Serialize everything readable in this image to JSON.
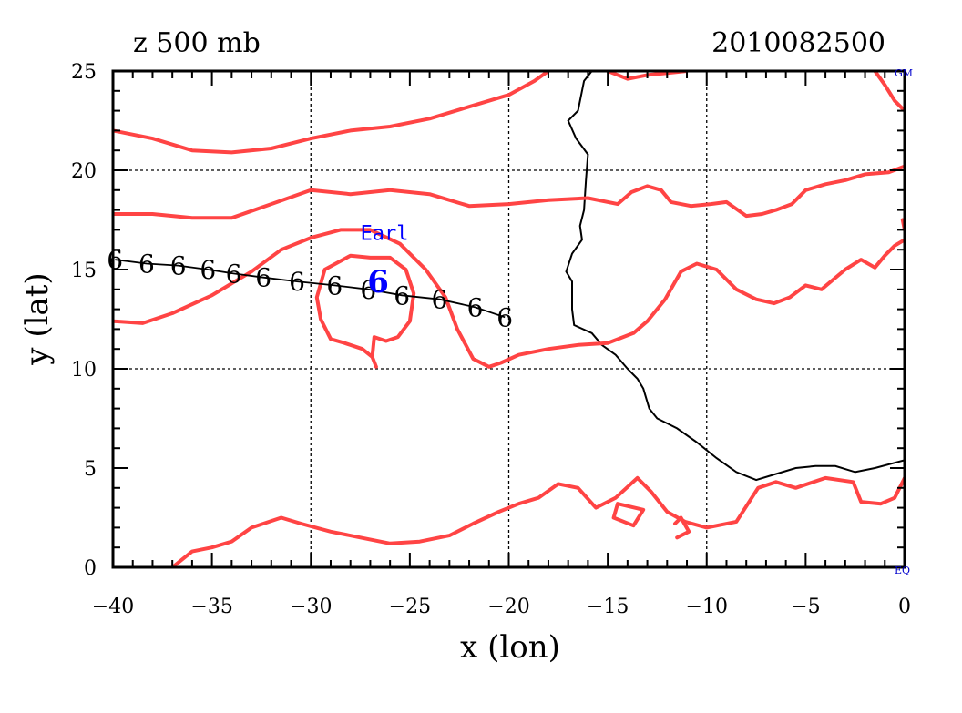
{
  "chart_data": {
    "type": "line",
    "title_left": "z 500 mb",
    "title_right": "2010082500",
    "xlabel": "x (lon)",
    "ylabel": "y (lat)",
    "xlim": [
      -40,
      0
    ],
    "ylim": [
      0,
      25
    ],
    "xticks": [
      -40,
      -35,
      -30,
      -25,
      -20,
      -15,
      -10,
      -5,
      0
    ],
    "yticks": [
      0,
      5,
      10,
      15,
      20,
      25
    ],
    "xtick_labels": [
      "−40",
      "−35",
      "−30",
      "−25",
      "−20",
      "−15",
      "−10",
      "−5",
      "0"
    ],
    "ytick_labels": [
      "0",
      "5",
      "10",
      "15",
      "20",
      "25"
    ],
    "grid_x": [
      -30,
      -20,
      -10
    ],
    "grid_y": [
      10,
      20
    ],
    "corner_labels": {
      "top_right": "GM",
      "bottom_right": "EQ"
    },
    "colors": {
      "contour": "#ff4444",
      "coast": "#000000",
      "storm": "#0000ff",
      "track": "#000000",
      "corner": "#0000cc"
    },
    "storm": {
      "name": "Earl",
      "lon": -26.6,
      "lat": 14.4,
      "label_lon": -27.5,
      "label_lat": 16.5
    },
    "track": [
      [
        -39.9,
        15.5
      ],
      [
        -38.3,
        15.3
      ],
      [
        -36.7,
        15.2
      ],
      [
        -35.2,
        15.0
      ],
      [
        -33.9,
        14.8
      ],
      [
        -32.4,
        14.6
      ],
      [
        -30.7,
        14.4
      ],
      [
        -28.8,
        14.2
      ],
      [
        -27.1,
        14.0
      ],
      [
        -25.4,
        13.7
      ],
      [
        -23.5,
        13.5
      ],
      [
        -21.7,
        13.1
      ],
      [
        -20.2,
        12.6
      ]
    ],
    "track_symbol": "6",
    "coastline": [
      [
        -15.8,
        25.0
      ],
      [
        -16.2,
        24.5
      ],
      [
        -16.5,
        23.0
      ],
      [
        -17.0,
        22.5
      ],
      [
        -16.6,
        21.6
      ],
      [
        -16.0,
        20.8
      ],
      [
        -16.1,
        19.5
      ],
      [
        -16.2,
        18.0
      ],
      [
        -16.4,
        17.2
      ],
      [
        -16.3,
        16.5
      ],
      [
        -16.8,
        15.8
      ],
      [
        -17.1,
        14.9
      ],
      [
        -16.8,
        14.4
      ],
      [
        -16.8,
        13.0
      ],
      [
        -16.7,
        12.2
      ],
      [
        -15.8,
        11.8
      ],
      [
        -15.3,
        11.2
      ],
      [
        -14.6,
        10.7
      ],
      [
        -14.0,
        10.0
      ],
      [
        -13.5,
        9.5
      ],
      [
        -13.2,
        9.0
      ],
      [
        -12.9,
        8.0
      ],
      [
        -12.5,
        7.5
      ],
      [
        -11.5,
        7.0
      ],
      [
        -10.5,
        6.3
      ],
      [
        -9.5,
        5.5
      ],
      [
        -8.5,
        4.8
      ],
      [
        -7.5,
        4.4
      ],
      [
        -6.5,
        4.7
      ],
      [
        -5.5,
        5.0
      ],
      [
        -4.5,
        5.1
      ],
      [
        -3.5,
        5.1
      ],
      [
        -2.5,
        4.8
      ],
      [
        -1.5,
        5.0
      ],
      [
        0.0,
        5.4
      ]
    ],
    "contours": [
      [
        [
          -40,
          22.0
        ],
        [
          -38.0,
          21.6
        ],
        [
          -36.0,
          21.0
        ],
        [
          -34.0,
          20.9
        ],
        [
          -32.0,
          21.1
        ],
        [
          -30.0,
          21.6
        ],
        [
          -28.0,
          22.0
        ],
        [
          -26.0,
          22.2
        ],
        [
          -24.0,
          22.6
        ],
        [
          -22.0,
          23.2
        ],
        [
          -20.0,
          23.8
        ],
        [
          -18.7,
          24.5
        ],
        [
          -18.0,
          25.0
        ]
      ],
      [
        [
          -15.0,
          25.0
        ],
        [
          -14.0,
          24.6
        ],
        [
          -13.0,
          24.8
        ],
        [
          -12.0,
          24.9
        ],
        [
          -11.0,
          25.0
        ]
      ],
      [
        [
          -1.5,
          25.0
        ],
        [
          -1.0,
          24.3
        ],
        [
          -0.5,
          23.5
        ],
        [
          0.0,
          23.0
        ]
      ],
      [
        [
          -40,
          17.8
        ],
        [
          -38.0,
          17.8
        ],
        [
          -36.0,
          17.6
        ],
        [
          -34.0,
          17.6
        ],
        [
          -32.0,
          18.3
        ],
        [
          -30.0,
          19.0
        ],
        [
          -28.0,
          18.8
        ],
        [
          -26.0,
          19.0
        ],
        [
          -24.0,
          18.8
        ],
        [
          -22.0,
          18.2
        ],
        [
          -20.0,
          18.3
        ],
        [
          -18.0,
          18.5
        ],
        [
          -16.0,
          18.6
        ],
        [
          -14.5,
          18.3
        ],
        [
          -13.8,
          18.9
        ],
        [
          -13.0,
          19.2
        ],
        [
          -12.3,
          19.0
        ],
        [
          -11.8,
          18.4
        ],
        [
          -10.8,
          18.2
        ],
        [
          -9.8,
          18.3
        ],
        [
          -9.0,
          18.4
        ],
        [
          -8.0,
          17.7
        ],
        [
          -7.2,
          17.8
        ],
        [
          -6.5,
          18.0
        ],
        [
          -5.7,
          18.3
        ],
        [
          -5.0,
          19.0
        ],
        [
          -4.0,
          19.3
        ],
        [
          -3.0,
          19.5
        ],
        [
          -2.0,
          19.8
        ],
        [
          -0.8,
          19.9
        ],
        [
          0.0,
          20.2
        ]
      ],
      [
        [
          -40,
          12.4
        ],
        [
          -38.5,
          12.3
        ],
        [
          -37.0,
          12.8
        ],
        [
          -35.0,
          13.7
        ],
        [
          -33.0,
          14.9
        ],
        [
          -31.5,
          16.0
        ],
        [
          -30.0,
          16.6
        ],
        [
          -28.5,
          17.0
        ],
        [
          -27.0,
          17.0
        ],
        [
          -25.5,
          16.3
        ],
        [
          -24.2,
          15.0
        ],
        [
          -23.2,
          13.6
        ],
        [
          -22.6,
          12.0
        ],
        [
          -21.8,
          10.5
        ],
        [
          -21.0,
          10.1
        ],
        [
          -20.4,
          10.3
        ],
        [
          -19.5,
          10.7
        ],
        [
          -18.0,
          11.0
        ],
        [
          -16.5,
          11.2
        ],
        [
          -15.0,
          11.3
        ],
        [
          -13.7,
          11.8
        ],
        [
          -13.0,
          12.4
        ],
        [
          -12.1,
          13.5
        ],
        [
          -11.3,
          14.9
        ],
        [
          -10.5,
          15.3
        ],
        [
          -9.5,
          15.0
        ],
        [
          -8.5,
          14.0
        ],
        [
          -7.5,
          13.5
        ],
        [
          -6.6,
          13.3
        ],
        [
          -5.8,
          13.6
        ],
        [
          -5.0,
          14.2
        ],
        [
          -4.2,
          14.0
        ],
        [
          -3.0,
          15.0
        ],
        [
          -2.2,
          15.5
        ],
        [
          -1.5,
          15.1
        ],
        [
          -1.0,
          15.7
        ],
        [
          -0.5,
          16.2
        ],
        [
          0.0,
          16.5
        ]
      ],
      [
        [
          -26.7,
          10.1
        ],
        [
          -26.9,
          10.6
        ],
        [
          -27.4,
          11.0
        ],
        [
          -28.3,
          11.3
        ],
        [
          -29.0,
          11.5
        ],
        [
          -29.5,
          12.5
        ],
        [
          -29.7,
          13.6
        ],
        [
          -29.3,
          15.0
        ],
        [
          -28.0,
          15.7
        ],
        [
          -27.0,
          15.6
        ],
        [
          -26.0,
          15.6
        ],
        [
          -25.2,
          15.0
        ],
        [
          -24.8,
          13.8
        ],
        [
          -25.0,
          12.4
        ],
        [
          -25.6,
          11.6
        ],
        [
          -26.2,
          11.4
        ],
        [
          -26.8,
          11.6
        ],
        [
          -26.9,
          10.6
        ]
      ],
      [
        [
          0.0,
          17.0
        ],
        [
          -0.1,
          17.5
        ]
      ],
      [
        [
          -37.0,
          0.0
        ],
        [
          -36.0,
          0.8
        ],
        [
          -35.0,
          1.0
        ],
        [
          -34.0,
          1.3
        ],
        [
          -33.0,
          2.0
        ],
        [
          -31.5,
          2.5
        ],
        [
          -30.5,
          2.2
        ],
        [
          -29.0,
          1.8
        ],
        [
          -27.5,
          1.5
        ],
        [
          -26.0,
          1.2
        ],
        [
          -24.5,
          1.3
        ],
        [
          -23.0,
          1.6
        ],
        [
          -21.8,
          2.2
        ],
        [
          -20.5,
          2.8
        ],
        [
          -19.5,
          3.2
        ],
        [
          -18.5,
          3.5
        ],
        [
          -17.5,
          4.2
        ],
        [
          -16.5,
          4.0
        ],
        [
          -15.6,
          3.0
        ],
        [
          -14.6,
          3.5
        ],
        [
          -13.5,
          4.5
        ],
        [
          -12.8,
          3.8
        ],
        [
          -12.0,
          2.8
        ],
        [
          -11.1,
          2.3
        ],
        [
          -10.0,
          2.0
        ],
        [
          -8.5,
          2.3
        ],
        [
          -7.4,
          4.0
        ],
        [
          -6.5,
          4.3
        ],
        [
          -5.5,
          4.0
        ],
        [
          -4.0,
          4.5
        ],
        [
          -2.6,
          4.3
        ],
        [
          -2.2,
          3.3
        ],
        [
          -1.2,
          3.2
        ],
        [
          -0.5,
          3.5
        ],
        [
          0.0,
          4.5
        ]
      ],
      [
        [
          -14.5,
          3.2
        ],
        [
          -13.2,
          2.9
        ],
        [
          -13.7,
          2.1
        ],
        [
          -14.7,
          2.5
        ],
        [
          -14.5,
          3.2
        ]
      ],
      [
        [
          -11.6,
          2.2
        ],
        [
          -11.3,
          2.5
        ],
        [
          -10.9,
          1.8
        ],
        [
          -11.5,
          1.5
        ]
      ]
    ]
  }
}
